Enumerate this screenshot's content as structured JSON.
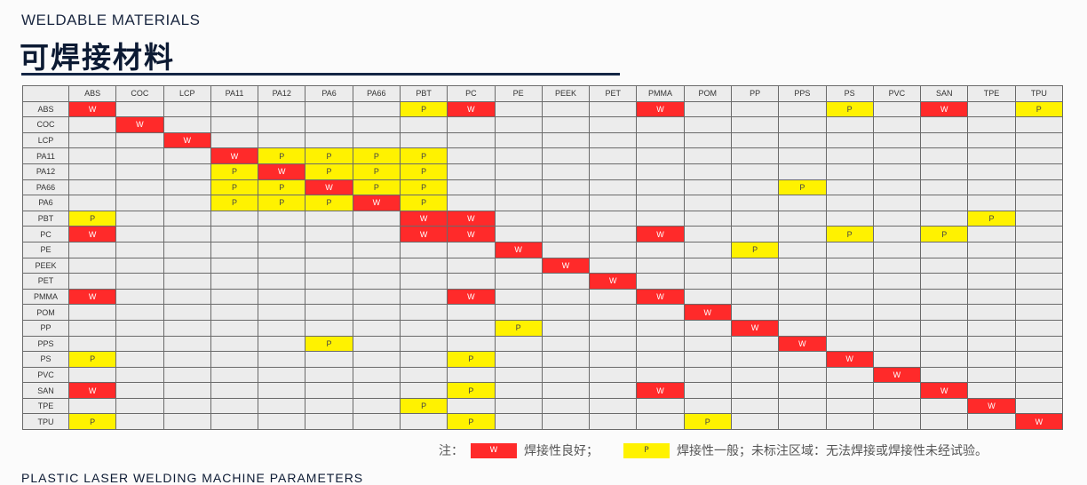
{
  "header": {
    "subtitle": "WELDABLE MATERIALS",
    "title": "可焊接材料"
  },
  "colors": {
    "weldable": "#ff2a2a",
    "partial": "#fff200",
    "empty": "#ececec",
    "title": "#0c1a33"
  },
  "table": {
    "columns": [
      "ABS",
      "COC",
      "LCP",
      "PA11",
      "PA12",
      "PA6",
      "PA66",
      "PBT",
      "PC",
      "PE",
      "PEEK",
      "PET",
      "PMMA",
      "POM",
      "PP",
      "PPS",
      "PS",
      "PVC",
      "SAN",
      "TPE",
      "TPU"
    ],
    "rows": [
      {
        "label": "ABS",
        "cells": "W......PW...W...P.W.P"
      },
      {
        "label": "COC",
        "cells": ".W..................."
      },
      {
        "label": "LCP",
        "cells": "..W.................."
      },
      {
        "label": "PA11",
        "cells": "...WPPPP............."
      },
      {
        "label": "PA12",
        "cells": "...PWPPP............."
      },
      {
        "label": "PA66",
        "cells": "...PPWPP.......P....."
      },
      {
        "label": "PA6",
        "cells": "...PPPWP............."
      },
      {
        "label": "PBT",
        "cells": "P......WW..........P."
      },
      {
        "label": "PC",
        "cells": "W......WW...W...P.P.."
      },
      {
        "label": "PE",
        "cells": ".........W....P......"
      },
      {
        "label": "PEEK",
        "cells": "..........W.........."
      },
      {
        "label": "PET",
        "cells": "...........W........."
      },
      {
        "label": "PMMA",
        "cells": "W.......W...W........"
      },
      {
        "label": "POM",
        "cells": ".............W......."
      },
      {
        "label": "PP",
        "cells": ".........P....W......"
      },
      {
        "label": "PPS",
        "cells": ".....P.........W....."
      },
      {
        "label": "PS",
        "cells": "P.......P.......W...."
      },
      {
        "label": "PVC",
        "cells": ".................W..."
      },
      {
        "label": "SAN",
        "cells": "W.......P...W.....W.."
      },
      {
        "label": "TPE",
        "cells": ".......P...........W."
      },
      {
        "label": "TPU",
        "cells": "P.......P....P......W"
      }
    ]
  },
  "legend": {
    "note_label": "注：",
    "w_mark": "W",
    "w_text": "焊接性良好；",
    "p_mark": "P",
    "p_text": "焊接性一般；未标注区域：无法焊接或焊接性未经试验。"
  },
  "next_section": "PLASTIC LASER WELDING MACHINE PARAMETERS"
}
